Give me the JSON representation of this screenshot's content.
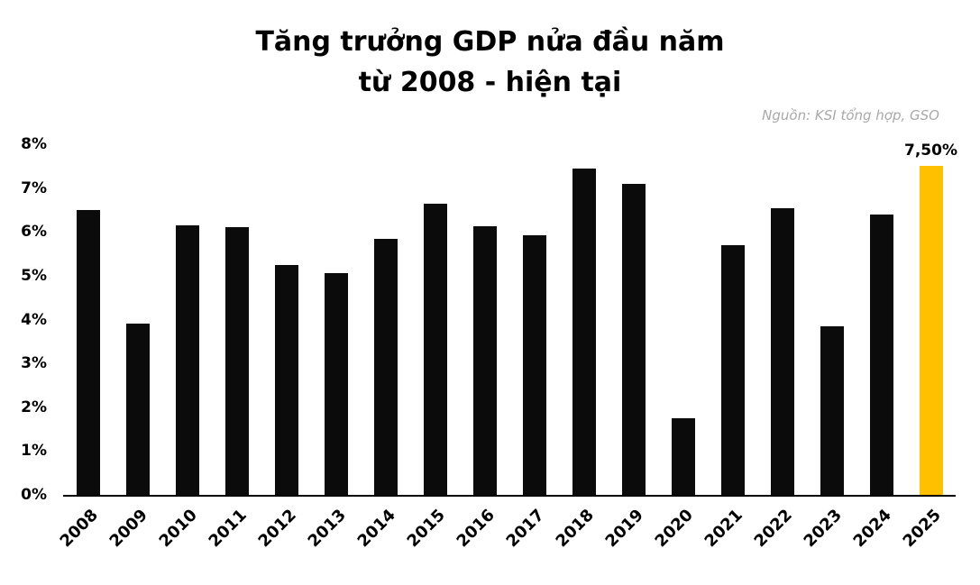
{
  "chart_data": {
    "type": "bar",
    "title_lines": [
      "Tăng trưởng GDP nửa đầu năm",
      "từ 2008 - hiện tại"
    ],
    "source": "Nguồn: KSI tổng hợp, GSO",
    "categories": [
      "2008",
      "2009",
      "2010",
      "2011",
      "2012",
      "2013",
      "2014",
      "2015",
      "2016",
      "2017",
      "2018",
      "2019",
      "2020",
      "2021",
      "2022",
      "2023",
      "2024",
      "2025"
    ],
    "values": [
      6.5,
      3.9,
      6.15,
      6.1,
      5.25,
      5.05,
      5.85,
      6.65,
      6.12,
      5.92,
      7.45,
      7.1,
      1.75,
      5.7,
      6.55,
      3.85,
      6.4,
      7.5
    ],
    "highlight_index": 17,
    "highlight_label": "7,50%",
    "bar_color": "#0b0b0b",
    "highlight_color": "#ffc000",
    "y_ticks": [
      "0%",
      "1%",
      "2%",
      "3%",
      "4%",
      "5%",
      "6%",
      "7%",
      "8%"
    ],
    "ylim": [
      0,
      8
    ],
    "grid": false,
    "legend": "none",
    "xlabel": "",
    "ylabel": ""
  }
}
